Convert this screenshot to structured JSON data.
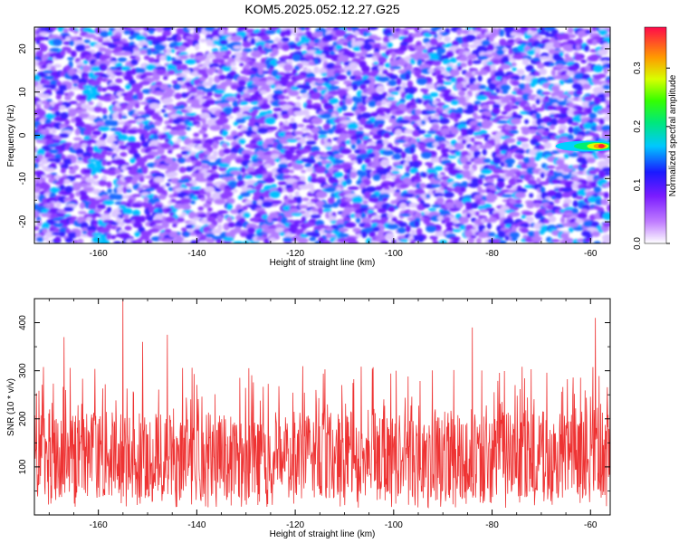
{
  "title": "KOM5.2025.052.12.27.G25",
  "chart_data": [
    {
      "type": "heatmap",
      "xlabel": "Height of straight line (km)",
      "ylabel": "Frequency (Hz)",
      "xlim": [
        -173,
        -56
      ],
      "ylim": [
        -25,
        25
      ],
      "xticks": [
        -160,
        -140,
        -120,
        -100,
        -80,
        -60
      ],
      "yticks": [
        -20,
        -10,
        0,
        10,
        20
      ],
      "colorbar": {
        "label": "Normalized spectral amplitude",
        "range": [
          0,
          0.37
        ],
        "ticks": [
          0.0,
          0.1,
          0.2,
          0.3
        ]
      },
      "peak": {
        "x": -57.5,
        "y": -2.5,
        "value": 0.37
      }
    },
    {
      "type": "line",
      "xlabel": "Height of straight line (km)",
      "ylabel": "SNR (10 * v/v)",
      "xlim": [
        -173,
        -56
      ],
      "ylim": [
        0,
        450
      ],
      "xticks": [
        -160,
        -140,
        -120,
        -100,
        -80,
        -60
      ],
      "yticks": [
        100,
        200,
        300,
        400
      ],
      "series": [
        {
          "color": "#ee3333",
          "notable_peaks": [
            {
              "x": -155,
              "y": 450
            },
            {
              "x": -167,
              "y": 370
            },
            {
              "x": -59,
              "y": 410
            },
            {
              "x": -84,
              "y": 390
            },
            {
              "x": -146,
              "y": 375
            },
            {
              "x": -151,
              "y": 360
            }
          ]
        }
      ]
    }
  ]
}
